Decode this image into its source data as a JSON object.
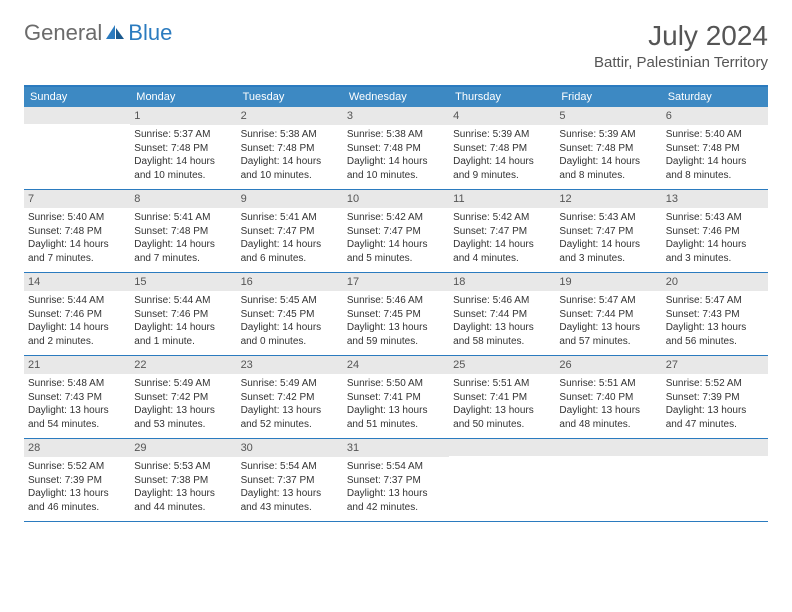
{
  "logo": {
    "text1": "General",
    "text2": "Blue"
  },
  "title": "July 2024",
  "location": "Battir, Palestinian Territory",
  "weekdays": [
    "Sunday",
    "Monday",
    "Tuesday",
    "Wednesday",
    "Thursday",
    "Friday",
    "Saturday"
  ],
  "colors": {
    "header_bar": "#3d89c3",
    "border": "#2b7bbf",
    "daynum_bg": "#e8e8e8",
    "text": "#333333",
    "title_text": "#555555"
  },
  "weeks": [
    [
      {
        "num": "",
        "sunrise": "",
        "sunset": "",
        "daylight": ""
      },
      {
        "num": "1",
        "sunrise": "Sunrise: 5:37 AM",
        "sunset": "Sunset: 7:48 PM",
        "daylight": "Daylight: 14 hours and 10 minutes."
      },
      {
        "num": "2",
        "sunrise": "Sunrise: 5:38 AM",
        "sunset": "Sunset: 7:48 PM",
        "daylight": "Daylight: 14 hours and 10 minutes."
      },
      {
        "num": "3",
        "sunrise": "Sunrise: 5:38 AM",
        "sunset": "Sunset: 7:48 PM",
        "daylight": "Daylight: 14 hours and 10 minutes."
      },
      {
        "num": "4",
        "sunrise": "Sunrise: 5:39 AM",
        "sunset": "Sunset: 7:48 PM",
        "daylight": "Daylight: 14 hours and 9 minutes."
      },
      {
        "num": "5",
        "sunrise": "Sunrise: 5:39 AM",
        "sunset": "Sunset: 7:48 PM",
        "daylight": "Daylight: 14 hours and 8 minutes."
      },
      {
        "num": "6",
        "sunrise": "Sunrise: 5:40 AM",
        "sunset": "Sunset: 7:48 PM",
        "daylight": "Daylight: 14 hours and 8 minutes."
      }
    ],
    [
      {
        "num": "7",
        "sunrise": "Sunrise: 5:40 AM",
        "sunset": "Sunset: 7:48 PM",
        "daylight": "Daylight: 14 hours and 7 minutes."
      },
      {
        "num": "8",
        "sunrise": "Sunrise: 5:41 AM",
        "sunset": "Sunset: 7:48 PM",
        "daylight": "Daylight: 14 hours and 7 minutes."
      },
      {
        "num": "9",
        "sunrise": "Sunrise: 5:41 AM",
        "sunset": "Sunset: 7:47 PM",
        "daylight": "Daylight: 14 hours and 6 minutes."
      },
      {
        "num": "10",
        "sunrise": "Sunrise: 5:42 AM",
        "sunset": "Sunset: 7:47 PM",
        "daylight": "Daylight: 14 hours and 5 minutes."
      },
      {
        "num": "11",
        "sunrise": "Sunrise: 5:42 AM",
        "sunset": "Sunset: 7:47 PM",
        "daylight": "Daylight: 14 hours and 4 minutes."
      },
      {
        "num": "12",
        "sunrise": "Sunrise: 5:43 AM",
        "sunset": "Sunset: 7:47 PM",
        "daylight": "Daylight: 14 hours and 3 minutes."
      },
      {
        "num": "13",
        "sunrise": "Sunrise: 5:43 AM",
        "sunset": "Sunset: 7:46 PM",
        "daylight": "Daylight: 14 hours and 3 minutes."
      }
    ],
    [
      {
        "num": "14",
        "sunrise": "Sunrise: 5:44 AM",
        "sunset": "Sunset: 7:46 PM",
        "daylight": "Daylight: 14 hours and 2 minutes."
      },
      {
        "num": "15",
        "sunrise": "Sunrise: 5:44 AM",
        "sunset": "Sunset: 7:46 PM",
        "daylight": "Daylight: 14 hours and 1 minute."
      },
      {
        "num": "16",
        "sunrise": "Sunrise: 5:45 AM",
        "sunset": "Sunset: 7:45 PM",
        "daylight": "Daylight: 14 hours and 0 minutes."
      },
      {
        "num": "17",
        "sunrise": "Sunrise: 5:46 AM",
        "sunset": "Sunset: 7:45 PM",
        "daylight": "Daylight: 13 hours and 59 minutes."
      },
      {
        "num": "18",
        "sunrise": "Sunrise: 5:46 AM",
        "sunset": "Sunset: 7:44 PM",
        "daylight": "Daylight: 13 hours and 58 minutes."
      },
      {
        "num": "19",
        "sunrise": "Sunrise: 5:47 AM",
        "sunset": "Sunset: 7:44 PM",
        "daylight": "Daylight: 13 hours and 57 minutes."
      },
      {
        "num": "20",
        "sunrise": "Sunrise: 5:47 AM",
        "sunset": "Sunset: 7:43 PM",
        "daylight": "Daylight: 13 hours and 56 minutes."
      }
    ],
    [
      {
        "num": "21",
        "sunrise": "Sunrise: 5:48 AM",
        "sunset": "Sunset: 7:43 PM",
        "daylight": "Daylight: 13 hours and 54 minutes."
      },
      {
        "num": "22",
        "sunrise": "Sunrise: 5:49 AM",
        "sunset": "Sunset: 7:42 PM",
        "daylight": "Daylight: 13 hours and 53 minutes."
      },
      {
        "num": "23",
        "sunrise": "Sunrise: 5:49 AM",
        "sunset": "Sunset: 7:42 PM",
        "daylight": "Daylight: 13 hours and 52 minutes."
      },
      {
        "num": "24",
        "sunrise": "Sunrise: 5:50 AM",
        "sunset": "Sunset: 7:41 PM",
        "daylight": "Daylight: 13 hours and 51 minutes."
      },
      {
        "num": "25",
        "sunrise": "Sunrise: 5:51 AM",
        "sunset": "Sunset: 7:41 PM",
        "daylight": "Daylight: 13 hours and 50 minutes."
      },
      {
        "num": "26",
        "sunrise": "Sunrise: 5:51 AM",
        "sunset": "Sunset: 7:40 PM",
        "daylight": "Daylight: 13 hours and 48 minutes."
      },
      {
        "num": "27",
        "sunrise": "Sunrise: 5:52 AM",
        "sunset": "Sunset: 7:39 PM",
        "daylight": "Daylight: 13 hours and 47 minutes."
      }
    ],
    [
      {
        "num": "28",
        "sunrise": "Sunrise: 5:52 AM",
        "sunset": "Sunset: 7:39 PM",
        "daylight": "Daylight: 13 hours and 46 minutes."
      },
      {
        "num": "29",
        "sunrise": "Sunrise: 5:53 AM",
        "sunset": "Sunset: 7:38 PM",
        "daylight": "Daylight: 13 hours and 44 minutes."
      },
      {
        "num": "30",
        "sunrise": "Sunrise: 5:54 AM",
        "sunset": "Sunset: 7:37 PM",
        "daylight": "Daylight: 13 hours and 43 minutes."
      },
      {
        "num": "31",
        "sunrise": "Sunrise: 5:54 AM",
        "sunset": "Sunset: 7:37 PM",
        "daylight": "Daylight: 13 hours and 42 minutes."
      },
      {
        "num": "",
        "sunrise": "",
        "sunset": "",
        "daylight": ""
      },
      {
        "num": "",
        "sunrise": "",
        "sunset": "",
        "daylight": ""
      },
      {
        "num": "",
        "sunrise": "",
        "sunset": "",
        "daylight": ""
      }
    ]
  ]
}
